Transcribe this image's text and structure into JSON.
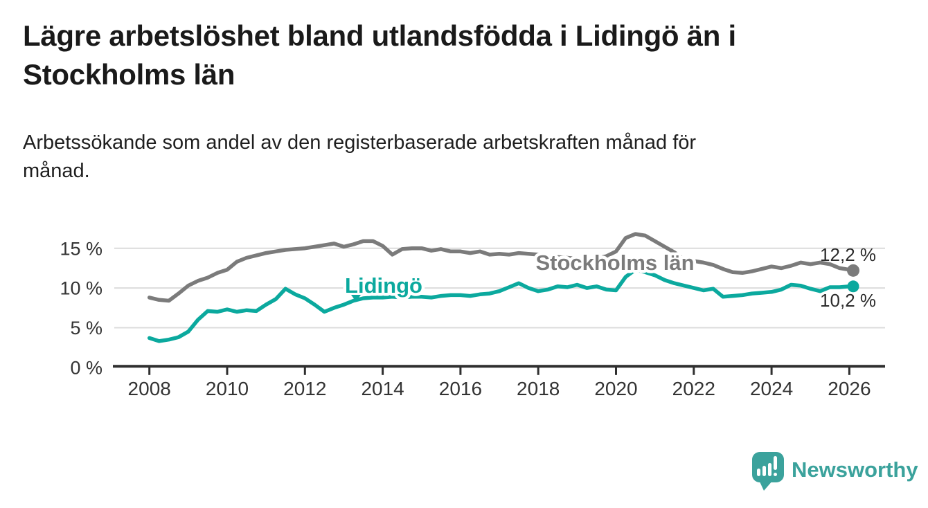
{
  "header": {
    "title": "Lägre arbetslöshet bland utlandsfödda i Lidingö än i\nStockholms län",
    "subtitle": "Arbetssökande som andel av den registerbaserade arbetskraften månad för\nmånad."
  },
  "chart_data": {
    "type": "line",
    "unit": "%",
    "grid": "horizontal",
    "x_start_year": 2008,
    "x_step_years": 0.25,
    "x_end_year": 2026.1,
    "x_tick_years": [
      2008,
      2010,
      2012,
      2014,
      2016,
      2018,
      2020,
      2022,
      2024,
      2026
    ],
    "x_tick_labels": [
      "2008",
      "2010",
      "2012",
      "2014",
      "2016",
      "2018",
      "2020",
      "2022",
      "2024",
      "2026"
    ],
    "y_ticks": [
      0,
      5,
      10,
      15
    ],
    "y_tick_labels": [
      "0 %",
      "5 %",
      "10 %",
      "15 %"
    ],
    "ylim": [
      0,
      17.5
    ],
    "colors": {
      "grid": "#dcdcdc",
      "axis": "#2f2f2f",
      "tick_text": "#333333",
      "value_label_text": "#2b2b2b"
    },
    "series": [
      {
        "id": "stockholm",
        "name": "Stockholms län",
        "color": "#7b7b7b",
        "end_label": "12,2 %",
        "values": [
          8.8,
          8.5,
          8.4,
          9.3,
          10.3,
          10.9,
          11.3,
          11.9,
          12.3,
          13.3,
          13.8,
          14.1,
          14.4,
          14.6,
          14.8,
          14.9,
          15.0,
          15.2,
          15.4,
          15.6,
          15.2,
          15.5,
          15.9,
          15.9,
          15.3,
          14.2,
          14.9,
          15.0,
          15.0,
          14.7,
          14.9,
          14.6,
          14.6,
          14.4,
          14.6,
          14.2,
          14.3,
          14.2,
          14.4,
          14.3,
          14.2,
          14.0,
          13.9,
          13.8,
          13.7,
          13.6,
          13.7,
          14.0,
          14.6,
          16.3,
          16.8,
          16.6,
          15.9,
          15.2,
          14.5,
          13.6,
          13.4,
          13.2,
          12.9,
          12.4,
          12.0,
          11.9,
          12.1,
          12.4,
          12.7,
          12.5,
          12.8,
          13.2,
          13.0,
          13.2,
          13.0,
          12.5,
          12.3,
          12.2
        ]
      },
      {
        "id": "lidingo",
        "name": "Lidingö",
        "color": "#0ba99e",
        "end_label": "10,2 %",
        "values": [
          3.7,
          3.3,
          3.5,
          3.8,
          4.5,
          6.0,
          7.1,
          7.0,
          7.3,
          7.0,
          7.2,
          7.1,
          7.9,
          8.6,
          9.9,
          9.2,
          8.7,
          7.9,
          7.0,
          7.5,
          7.9,
          8.4,
          8.7,
          8.8,
          8.8,
          8.9,
          8.8,
          8.9,
          8.9,
          8.8,
          9.0,
          9.1,
          9.1,
          9.0,
          9.2,
          9.3,
          9.6,
          10.1,
          10.6,
          10.0,
          9.6,
          9.8,
          10.2,
          10.1,
          10.4,
          10.0,
          10.2,
          9.8,
          9.7,
          11.4,
          12.3,
          12.0,
          11.6,
          11.0,
          10.6,
          10.3,
          10.0,
          9.7,
          9.9,
          8.9,
          9.0,
          9.1,
          9.3,
          9.4,
          9.5,
          9.8,
          10.4,
          10.3,
          9.9,
          9.6,
          10.1,
          10.1,
          10.2,
          10.2
        ]
      }
    ]
  },
  "branding": {
    "logo_icon": "speech-bubble-bar-chart-icon",
    "logo_text": "Newsworthy",
    "logo_color": "#3ba29c"
  }
}
